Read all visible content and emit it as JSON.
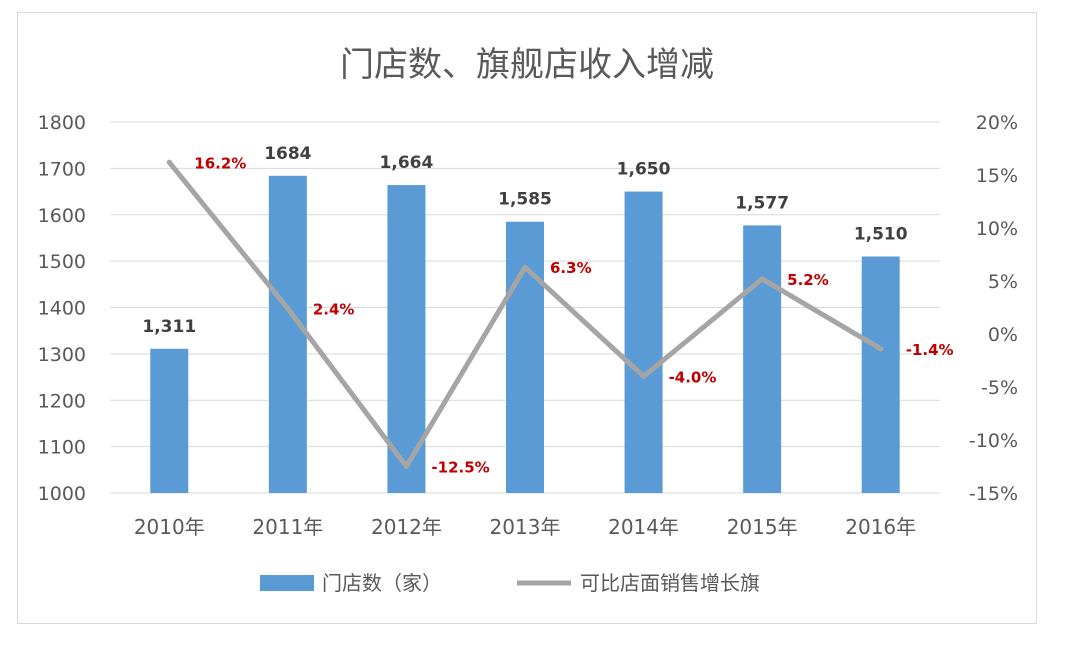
{
  "chart_data": {
    "type": "bar",
    "title": "门店数、旗舰店收入增减",
    "categories": [
      "2010年",
      "2011年",
      "2012年",
      "2013年",
      "2014年",
      "2015年",
      "2016年"
    ],
    "series": [
      {
        "name": "门店数（家）",
        "kind": "bar",
        "axis": "left",
        "color": "#5b9bd5",
        "values": [
          1311,
          1684,
          1664,
          1585,
          1650,
          1577,
          1510
        ],
        "labels": [
          "1,311",
          "1684",
          "1,664",
          "1,585",
          "1,650",
          "1,577",
          "1,510"
        ]
      },
      {
        "name": "可比店面销售增长旗",
        "kind": "line",
        "axis": "right",
        "color": "#a5a5a5",
        "values": [
          16.2,
          2.4,
          -12.5,
          6.3,
          -4.0,
          5.2,
          -1.4
        ],
        "labels": [
          "16.2%",
          "2.4%",
          "-12.5%",
          "6.3%",
          "-4.0%",
          "5.2%",
          "-1.4%"
        ],
        "label_color": "#c00000"
      }
    ],
    "y_left": {
      "range": [
        1000,
        1800
      ],
      "ticks": [
        "1000",
        "1100",
        "1200",
        "1300",
        "1400",
        "1500",
        "1600",
        "1700",
        "1800"
      ]
    },
    "y_right": {
      "range": [
        -15,
        20
      ],
      "ticks": [
        "-15%",
        "-10%",
        "-5%",
        "0%",
        "5%",
        "10%",
        "15%",
        "20%"
      ]
    },
    "grid": true,
    "legend": "bottom"
  }
}
